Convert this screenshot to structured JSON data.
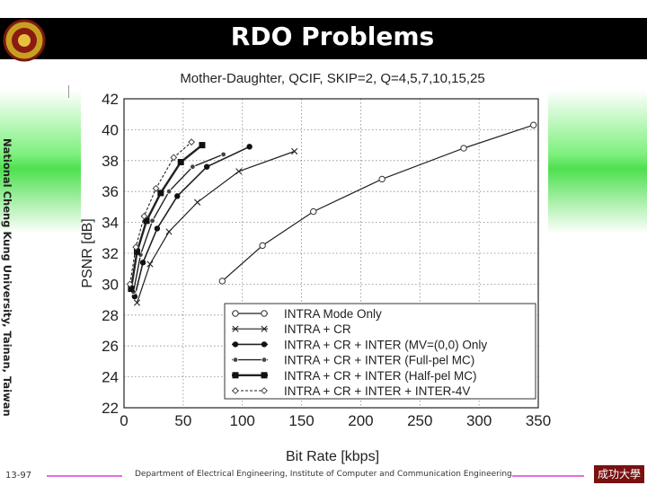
{
  "slide": {
    "title": "RDO Problems",
    "side_label": "National Cheng Kung University, Tainan, Taiwan",
    "page_number": "13-97",
    "footer": "Department of Electrical Engineering, Institute of Computer and Communication Engineering",
    "logo_text": "成功大學",
    "colors": {
      "title_bar": "#000000",
      "accent_green": "#4fe04f",
      "footer_arrow": "#e070e0"
    }
  },
  "chart_data": {
    "type": "line",
    "title": "Mother-Daughter, QCIF, SKIP=2, Q=4,5,7,10,15,25",
    "xlabel": "Bit Rate [kbps]",
    "ylabel": "PSNR [dB]",
    "xlim": [
      0,
      350
    ],
    "ylim": [
      22,
      42
    ],
    "x_ticks": [
      "0",
      "50",
      "100",
      "150",
      "200",
      "250",
      "300",
      "350"
    ],
    "y_ticks": [
      "22",
      "24",
      "26",
      "28",
      "30",
      "32",
      "34",
      "36",
      "38",
      "40",
      "42"
    ],
    "grid": true,
    "legend_position": "bottom-right",
    "series": [
      {
        "name": "INTRA Mode Only",
        "marker": "open-circle",
        "dash": "solid",
        "points": [
          [
            83,
            30.2
          ],
          [
            117,
            32.5
          ],
          [
            160,
            34.7
          ],
          [
            218,
            36.8
          ],
          [
            287,
            38.8
          ],
          [
            346,
            40.3
          ]
        ]
      },
      {
        "name": "INTRA + CR",
        "marker": "x",
        "dash": "solid",
        "points": [
          [
            11,
            28.8
          ],
          [
            22,
            31.3
          ],
          [
            38,
            33.4
          ],
          [
            62,
            35.3
          ],
          [
            97,
            37.3
          ],
          [
            144,
            38.6
          ]
        ]
      },
      {
        "name": "INTRA + CR + INTER (MV=(0,0) Only",
        "marker": "filled-dot",
        "dash": "solid",
        "points": [
          [
            9,
            29.2
          ],
          [
            16,
            31.4
          ],
          [
            28,
            33.6
          ],
          [
            45,
            35.7
          ],
          [
            70,
            37.6
          ],
          [
            106,
            38.9
          ]
        ]
      },
      {
        "name": "INTRA + CR + INTER (Full-pel MC)",
        "marker": "dot",
        "dash": "solid",
        "points": [
          [
            8,
            29.5
          ],
          [
            14,
            31.9
          ],
          [
            24,
            34.1
          ],
          [
            38,
            36.0
          ],
          [
            58,
            37.6
          ],
          [
            84,
            38.4
          ]
        ]
      },
      {
        "name": "INTRA + CR + INTER (Half-pel MC)",
        "marker": "filled-square",
        "dash": "solid",
        "points": [
          [
            6,
            29.7
          ],
          [
            11,
            32.1
          ],
          [
            19,
            34.1
          ],
          [
            31,
            35.9
          ],
          [
            48,
            37.9
          ],
          [
            66,
            39.0
          ]
        ]
      },
      {
        "name": "INTRA + CR + INTER + INTER-4V",
        "marker": "open-diamond",
        "dash": "dashed",
        "points": [
          [
            5,
            30.0
          ],
          [
            10,
            32.4
          ],
          [
            17,
            34.4
          ],
          [
            27,
            36.2
          ],
          [
            42,
            38.2
          ],
          [
            57,
            39.2
          ]
        ]
      }
    ]
  }
}
